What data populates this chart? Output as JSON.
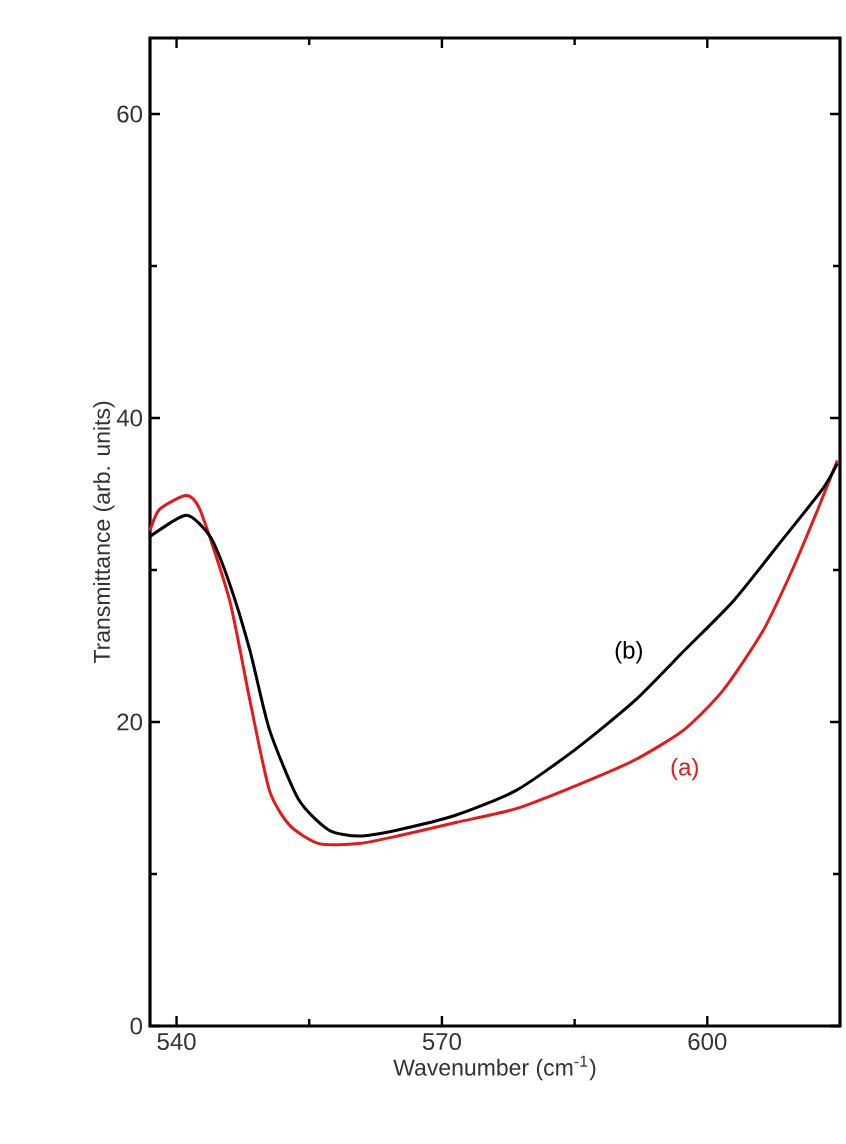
{
  "chart_data": {
    "type": "line",
    "xlabel": "Wavenumber (cm$^{-1}$)",
    "ylabel": "Transmittance (arb. units)",
    "xlim": [
      537,
      615
    ],
    "ylim": [
      0,
      65
    ],
    "xticks": [
      540,
      570,
      600
    ],
    "yticks": [
      0,
      20,
      40,
      60
    ],
    "grid": false,
    "legend": false,
    "marker": "none",
    "line_style": "solid",
    "series": [
      {
        "name": "(a)",
        "color": "#e41a1a",
        "x": [
          537,
          538.1,
          541.1,
          542.7,
          546,
          548.3,
          550.5,
          552.8,
          556.1,
          560.6,
          565,
          571.7,
          578.4,
          585.1,
          591.8,
          597.4,
          601.8,
          606.3,
          609.6,
          612.5,
          614.7
        ],
        "values": [
          32.6,
          34,
          34.9,
          33.9,
          28,
          21.4,
          15.5,
          13.2,
          12,
          12,
          12.5,
          13.4,
          14.3,
          15.8,
          17.5,
          19.5,
          22.1,
          26,
          30,
          34,
          37.2
        ]
      },
      {
        "name": "(b)",
        "color": "#000000",
        "x": [
          537,
          541.1,
          543.8,
          546,
          548.3,
          550.5,
          553.8,
          557.2,
          560.6,
          565,
          571.7,
          578.4,
          585.1,
          591.8,
          597.4,
          603,
          608.5,
          613,
          614.7
        ],
        "values": [
          32.2,
          33.6,
          32.2,
          29.1,
          24.7,
          19.5,
          14.9,
          12.9,
          12.5,
          12.9,
          13.9,
          15.5,
          18.2,
          21.4,
          24.7,
          28,
          32,
          35.3,
          37
        ]
      }
    ]
  }
}
